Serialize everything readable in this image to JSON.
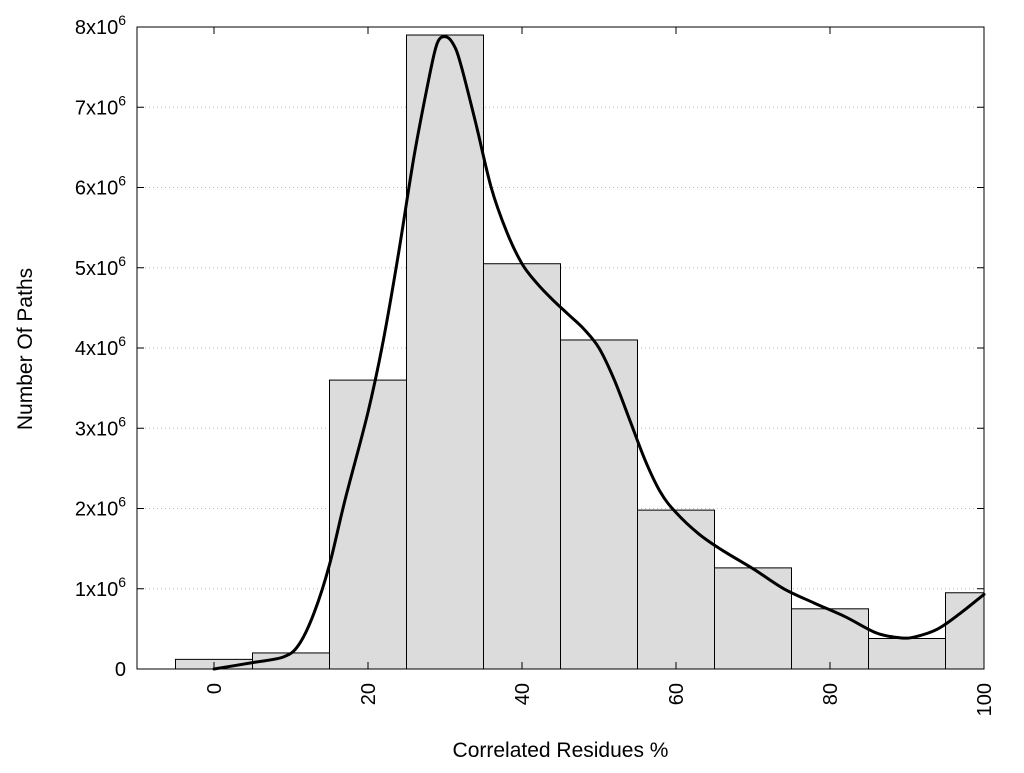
{
  "chart_data": {
    "type": "bar",
    "xlabel": "Correlated Residues %",
    "ylabel": "Number Of Paths",
    "xlim": [
      -10,
      100
    ],
    "ylim": [
      0,
      8000000
    ],
    "x_ticks": [
      0,
      20,
      40,
      60,
      80,
      100
    ],
    "y_ticks": [
      {
        "value": 0,
        "base": "0",
        "exp": ""
      },
      {
        "value": 1000000,
        "base": "1x10",
        "exp": "6"
      },
      {
        "value": 2000000,
        "base": "2x10",
        "exp": "6"
      },
      {
        "value": 3000000,
        "base": "3x10",
        "exp": "6"
      },
      {
        "value": 4000000,
        "base": "4x10",
        "exp": "6"
      },
      {
        "value": 5000000,
        "base": "5x10",
        "exp": "6"
      },
      {
        "value": 6000000,
        "base": "6x10",
        "exp": "6"
      },
      {
        "value": 7000000,
        "base": "7x10",
        "exp": "6"
      },
      {
        "value": 8000000,
        "base": "8x10",
        "exp": "6"
      }
    ],
    "bin_centers": [
      0,
      10,
      20,
      30,
      40,
      50,
      60,
      70,
      80,
      90,
      100
    ],
    "values": [
      120000,
      200000,
      3600000,
      7900000,
      5050000,
      4100000,
      1980000,
      1260000,
      750000,
      380000,
      950000
    ],
    "grid": "horizontal dotted",
    "bar_color": "#dcdcdc",
    "curve_color": "#000000",
    "density_curve": [
      [
        0,
        0
      ],
      [
        5,
        80000
      ],
      [
        9,
        150000
      ],
      [
        11,
        300000
      ],
      [
        13,
        700000
      ],
      [
        15,
        1300000
      ],
      [
        17,
        2100000
      ],
      [
        20,
        3200000
      ],
      [
        22,
        4100000
      ],
      [
        24,
        5200000
      ],
      [
        26,
        6400000
      ],
      [
        28,
        7400000
      ],
      [
        29,
        7800000
      ],
      [
        30,
        7880000
      ],
      [
        31,
        7800000
      ],
      [
        32,
        7550000
      ],
      [
        34,
        6800000
      ],
      [
        36,
        6000000
      ],
      [
        38,
        5450000
      ],
      [
        40,
        5050000
      ],
      [
        42,
        4800000
      ],
      [
        44,
        4600000
      ],
      [
        46,
        4420000
      ],
      [
        48,
        4240000
      ],
      [
        50,
        4000000
      ],
      [
        52,
        3600000
      ],
      [
        54,
        3100000
      ],
      [
        56,
        2600000
      ],
      [
        58,
        2200000
      ],
      [
        60,
        1950000
      ],
      [
        63,
        1680000
      ],
      [
        66,
        1480000
      ],
      [
        70,
        1250000
      ],
      [
        74,
        1000000
      ],
      [
        78,
        820000
      ],
      [
        82,
        650000
      ],
      [
        86,
        450000
      ],
      [
        89,
        390000
      ],
      [
        91,
        400000
      ],
      [
        94,
        500000
      ],
      [
        97,
        700000
      ],
      [
        100,
        930000
      ]
    ]
  }
}
